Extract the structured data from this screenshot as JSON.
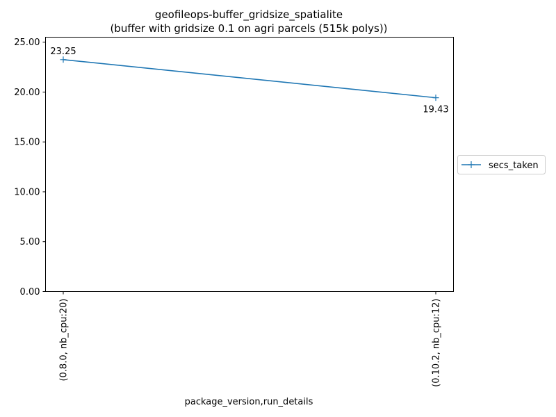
{
  "chart_data": {
    "type": "line",
    "title": "geofileops-buffer_gridsize_spatialite",
    "subtitle": "(buffer with gridsize 0.1 on agri parcels (515k polys))",
    "xlabel": "package_version,run_details",
    "ylabel": "",
    "categories": [
      "(0.8.0, nb_cpu:20)",
      "(0.10.2, nb_cpu:12)"
    ],
    "series": [
      {
        "name": "secs_taken",
        "values": [
          23.25,
          19.43
        ],
        "labels": [
          "23.25",
          "19.43"
        ],
        "color": "#1f77b4",
        "marker": "plus"
      }
    ],
    "ylim": [
      0,
      25.5
    ],
    "yticks": [
      0,
      5,
      10,
      15,
      20,
      25
    ],
    "ytick_labels": [
      "0.00",
      "5.00",
      "10.00",
      "15.00",
      "20.00",
      "25.00"
    ],
    "grid": false,
    "legend_position": "outside-right"
  }
}
